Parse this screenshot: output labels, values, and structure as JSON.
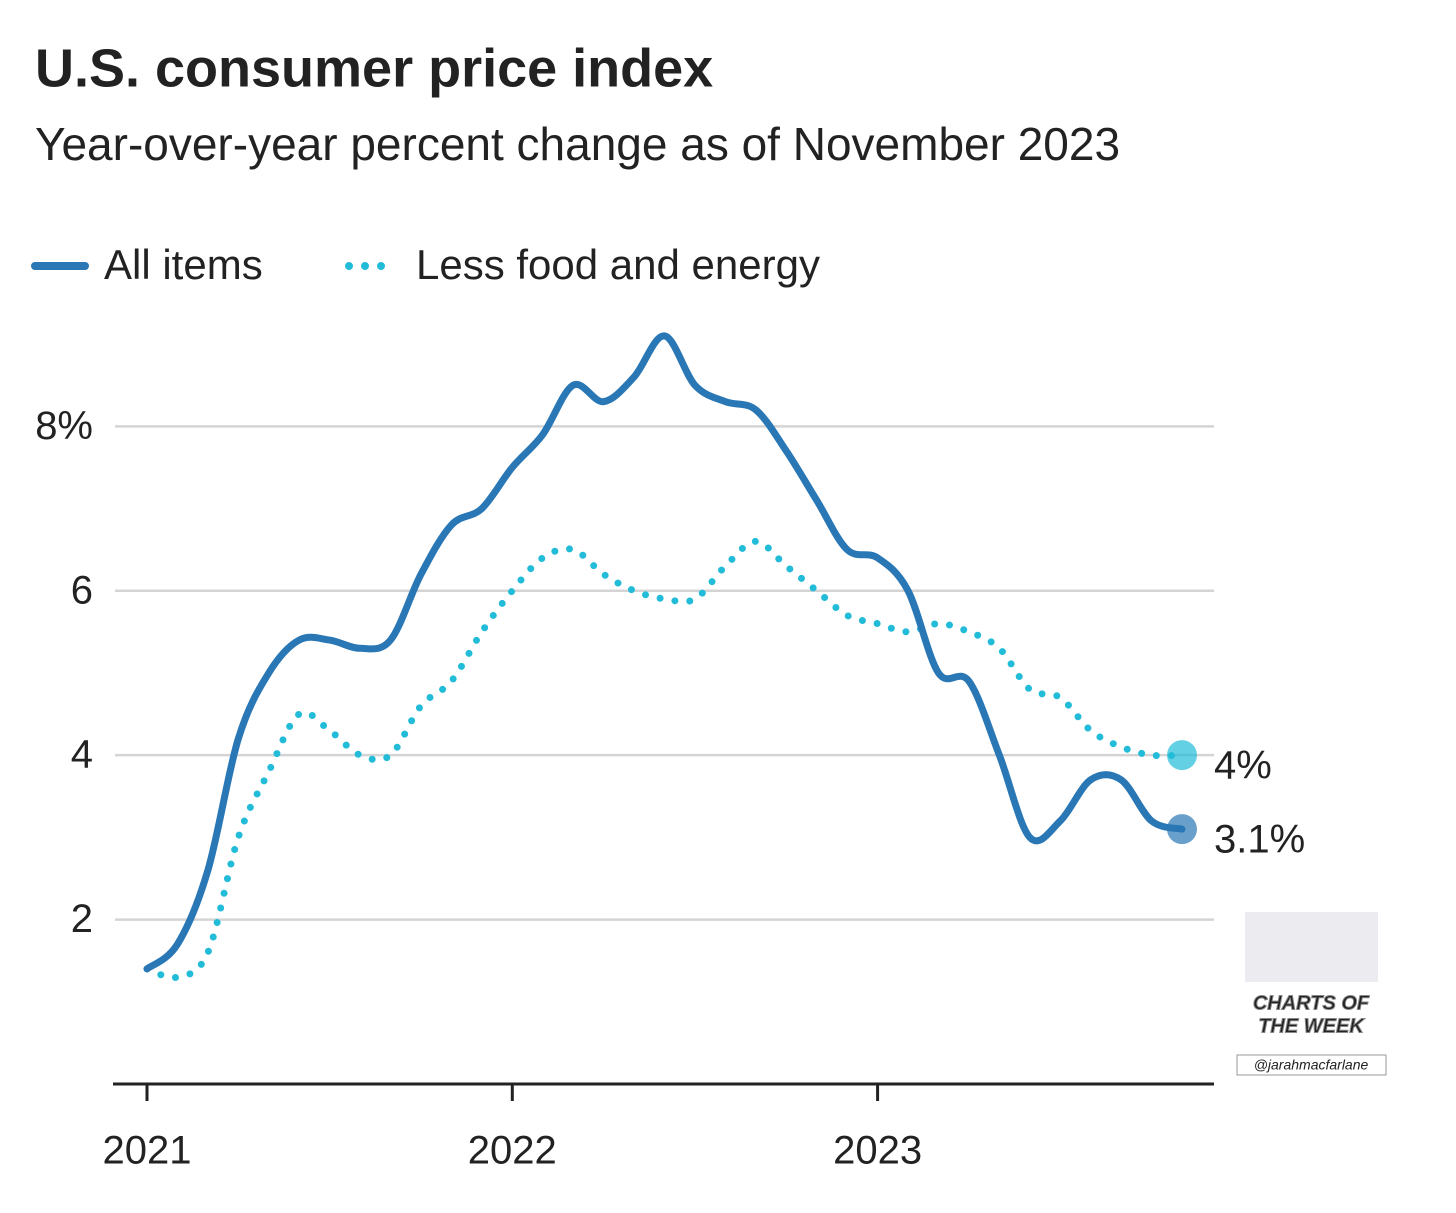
{
  "chart_data": {
    "type": "line",
    "title": "U.S. consumer price index",
    "subtitle": "Year-over-year percent change as of November 2023",
    "categories": [
      "2021",
      null,
      null,
      null,
      null,
      null,
      null,
      null,
      null,
      null,
      null,
      null,
      "2022",
      null,
      null,
      null,
      null,
      null,
      null,
      null,
      null,
      null,
      null,
      null,
      "2023",
      null,
      null,
      null,
      null,
      null,
      null,
      null,
      null,
      null,
      null
    ],
    "series": [
      {
        "name": "All items",
        "color": "#2a77b5",
        "style": "solid",
        "values": [
          1.4,
          1.7,
          2.6,
          4.2,
          5.0,
          5.4,
          5.4,
          5.3,
          5.4,
          6.2,
          6.8,
          7.0,
          7.5,
          7.9,
          8.5,
          8.3,
          8.6,
          9.1,
          8.5,
          8.3,
          8.2,
          7.7,
          7.1,
          6.5,
          6.4,
          6.0,
          5.0,
          4.9,
          4.0,
          3.0,
          3.2,
          3.7,
          3.7,
          3.2,
          3.1
        ],
        "value_labels": [
          null,
          null,
          null,
          null,
          null,
          null,
          null,
          null,
          null,
          null,
          null,
          null,
          null,
          null,
          null,
          null,
          null,
          null,
          null,
          null,
          null,
          null,
          null,
          null,
          null,
          null,
          null,
          null,
          null,
          null,
          null,
          null,
          null,
          null,
          "3.1%"
        ]
      },
      {
        "name": "Less food and energy",
        "color": "#22bcd9",
        "style": "dotted",
        "values": [
          1.4,
          1.3,
          1.6,
          3.0,
          3.8,
          4.5,
          4.3,
          4.0,
          4.0,
          4.6,
          4.9,
          5.5,
          6.0,
          6.4,
          6.5,
          6.2,
          6.0,
          5.9,
          5.9,
          6.3,
          6.6,
          6.3,
          6.0,
          5.7,
          5.6,
          5.5,
          5.6,
          5.5,
          5.3,
          4.8,
          4.7,
          4.3,
          4.1,
          4.0,
          4.0
        ],
        "value_labels": [
          null,
          null,
          null,
          null,
          null,
          null,
          null,
          null,
          null,
          null,
          null,
          null,
          null,
          null,
          null,
          null,
          null,
          null,
          null,
          null,
          null,
          null,
          null,
          null,
          null,
          null,
          null,
          null,
          null,
          null,
          null,
          null,
          null,
          null,
          "4%"
        ]
      }
    ],
    "ylim": [
      0,
      9.5
    ],
    "yticks": [
      2,
      4,
      6,
      {
        "value": 8,
        "label": "8%"
      }
    ],
    "grid": true
  },
  "watermark": {
    "lines": [
      "CHARTS OF",
      "THE WEEK"
    ],
    "handle": "@jarahmacfarlane"
  }
}
